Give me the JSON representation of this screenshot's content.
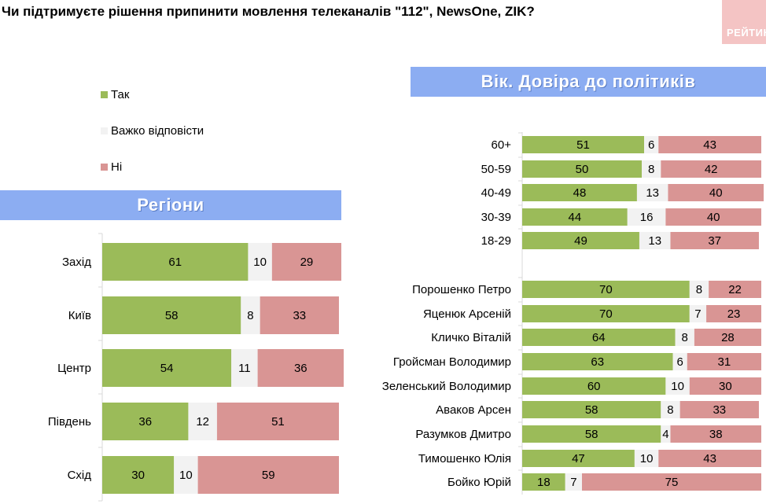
{
  "title": "Чи підтримуєте рішення припинити мовлення телеканалів \"112\", NewsOne, ZIK?",
  "brand": "РЕЙТИНГ",
  "colors": {
    "yes": "#9bbb59",
    "hard": "#f2f2f2",
    "no": "#d99594",
    "banner": "#8cadf2"
  },
  "legend": [
    {
      "label": "Так",
      "color": "#9bbb59"
    },
    {
      "label": "Важко відповісти",
      "color": "#f2f2f2"
    },
    {
      "label": "Ні",
      "color": "#d99594"
    }
  ],
  "chart_data": [
    {
      "type": "bar",
      "stacked": true,
      "orientation": "horizontal",
      "title": "Регіони",
      "categories": [
        "Захід",
        "Київ",
        "Центр",
        "Південь",
        "Схід"
      ],
      "series": [
        {
          "name": "Так",
          "values": [
            61,
            58,
            54,
            36,
            30
          ]
        },
        {
          "name": "Важко відповісти",
          "values": [
            10,
            8,
            11,
            12,
            10
          ]
        },
        {
          "name": "Ні",
          "values": [
            29,
            33,
            36,
            51,
            59
          ]
        }
      ],
      "xlim": [
        0,
        100
      ]
    },
    {
      "type": "bar",
      "stacked": true,
      "orientation": "horizontal",
      "title": "Вік. Довіра до політиків",
      "categories": [
        "60+",
        "50-59",
        "40-49",
        "30-39",
        "18-29",
        "Порошенко Петро",
        "Яценюк Арсеній",
        "Кличко Віталій",
        "Гройсман Володимир",
        "Зеленський Володимир",
        "Аваков Арсен",
        "Разумков Дмитро",
        "Тимошенко Юлія",
        "Бойко Юрій"
      ],
      "series": [
        {
          "name": "Так",
          "values": [
            51,
            50,
            48,
            44,
            49,
            70,
            70,
            64,
            63,
            60,
            58,
            58,
            47,
            18
          ]
        },
        {
          "name": "Важко відповісти",
          "values": [
            6,
            8,
            13,
            16,
            13,
            8,
            7,
            8,
            6,
            10,
            8,
            4,
            10,
            7
          ]
        },
        {
          "name": "Ні",
          "values": [
            43,
            42,
            40,
            40,
            37,
            22,
            23,
            28,
            31,
            30,
            33,
            38,
            43,
            75
          ]
        }
      ],
      "xlim": [
        0,
        100
      ]
    }
  ]
}
